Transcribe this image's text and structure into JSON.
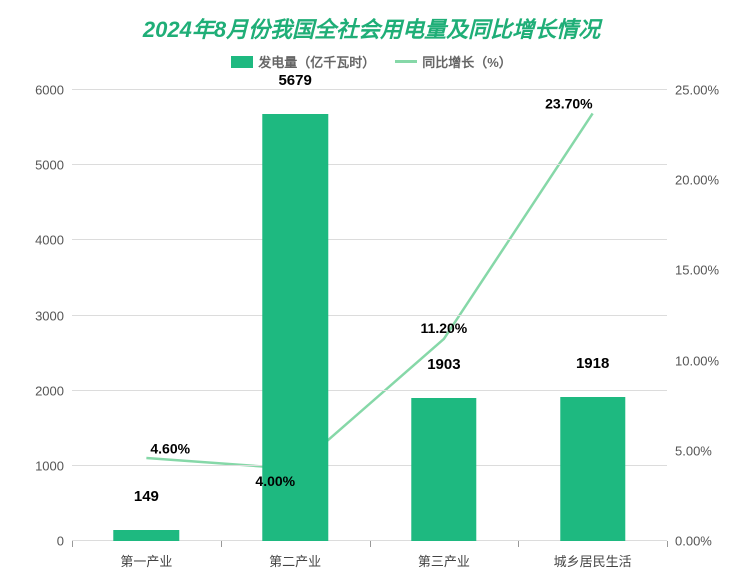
{
  "chart": {
    "type": "bar+line",
    "title": "2024年8月份我国全社会用电量及同比增长情况",
    "title_color": "#1fae77",
    "title_fontsize": 22,
    "legend": {
      "bar_label": "发电量（亿千瓦时）",
      "line_label": "同比增长（%）",
      "bar_color": "#1eb980",
      "line_color": "#86d8a8",
      "text_color": "#666666"
    },
    "categories": [
      "第一产业",
      "第二产业",
      "第三产业",
      "城乡居民生活"
    ],
    "bar_values": [
      149,
      5679,
      1903,
      1918
    ],
    "line_values_pct": [
      4.6,
      4.0,
      11.2,
      23.7
    ],
    "line_labels": [
      "4.60%",
      "4.00%",
      "11.20%",
      "23.70%"
    ],
    "line_label_anchors": [
      "above-right",
      "below-left",
      "above",
      "above-left"
    ],
    "y_left": {
      "min": 0,
      "max": 6000,
      "step": 1000
    },
    "y_right": {
      "min": 0.0,
      "max": 25.0,
      "step": 5.0,
      "tick_labels": [
        "0.00%",
        "5.00%",
        "10.00%",
        "15.00%",
        "20.00%",
        "25.00%"
      ]
    },
    "bar_width_pct": 11,
    "colors": {
      "bar": "#1eb980",
      "line": "#86d8a8",
      "grid": "#dcdcdc",
      "axis": "#999999",
      "tick_text": "#555555",
      "background": "#ffffff"
    },
    "line_width": 2.5,
    "marker_radius": 4
  }
}
